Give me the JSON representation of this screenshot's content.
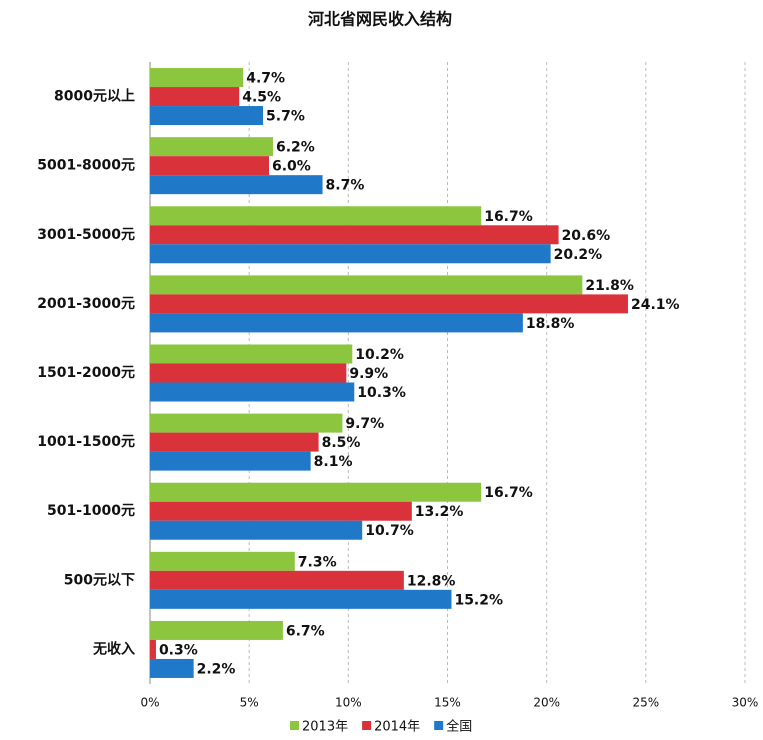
{
  "chart_data": {
    "type": "barh",
    "title": "河北省网民收入结构",
    "categories": [
      "8000元以上",
      "5001-8000元",
      "3001-5000元",
      "2001-3000元",
      "1501-2000元",
      "1001-1500元",
      "501-1000元",
      "500元以下",
      "无收入"
    ],
    "series": [
      {
        "name": "2013年",
        "color": "#8cc63f",
        "values": [
          4.7,
          6.2,
          16.7,
          21.8,
          10.2,
          9.7,
          16.7,
          7.3,
          6.7
        ],
        "value_labels": [
          "4.7%",
          "6.2%",
          "16.7%",
          "21.8%",
          "10.2%",
          "9.7%",
          "16.7%",
          "7.3%",
          "6.7%"
        ]
      },
      {
        "name": "2014年",
        "color": "#d9323a",
        "values": [
          4.5,
          6.0,
          20.6,
          24.1,
          9.9,
          8.5,
          13.2,
          12.8,
          0.3
        ],
        "value_labels": [
          "4.5%",
          "6.0%",
          "20.6%",
          "24.1%",
          "9.9%",
          "8.5%",
          "13.2%",
          "12.8%",
          "0.3%"
        ]
      },
      {
        "name": "全国",
        "color": "#1f78c8",
        "values": [
          5.7,
          8.7,
          20.2,
          18.8,
          10.3,
          8.1,
          10.7,
          15.2,
          2.2
        ],
        "value_labels": [
          "5.7%",
          "8.7%",
          "20.2%",
          "18.8%",
          "10.3%",
          "8.1%",
          "10.7%",
          "15.2%",
          "2.2%"
        ]
      }
    ],
    "xlim": [
      0,
      30
    ],
    "xticks": [
      {
        "value": 0,
        "label": "0%"
      },
      {
        "value": 5,
        "label": "5%"
      },
      {
        "value": 10,
        "label": "10%"
      },
      {
        "value": 15,
        "label": "15%"
      },
      {
        "value": 20,
        "label": "20%"
      },
      {
        "value": 25,
        "label": "25%"
      },
      {
        "value": 30,
        "label": "30%"
      }
    ],
    "grid": true,
    "legend": "bottom"
  }
}
